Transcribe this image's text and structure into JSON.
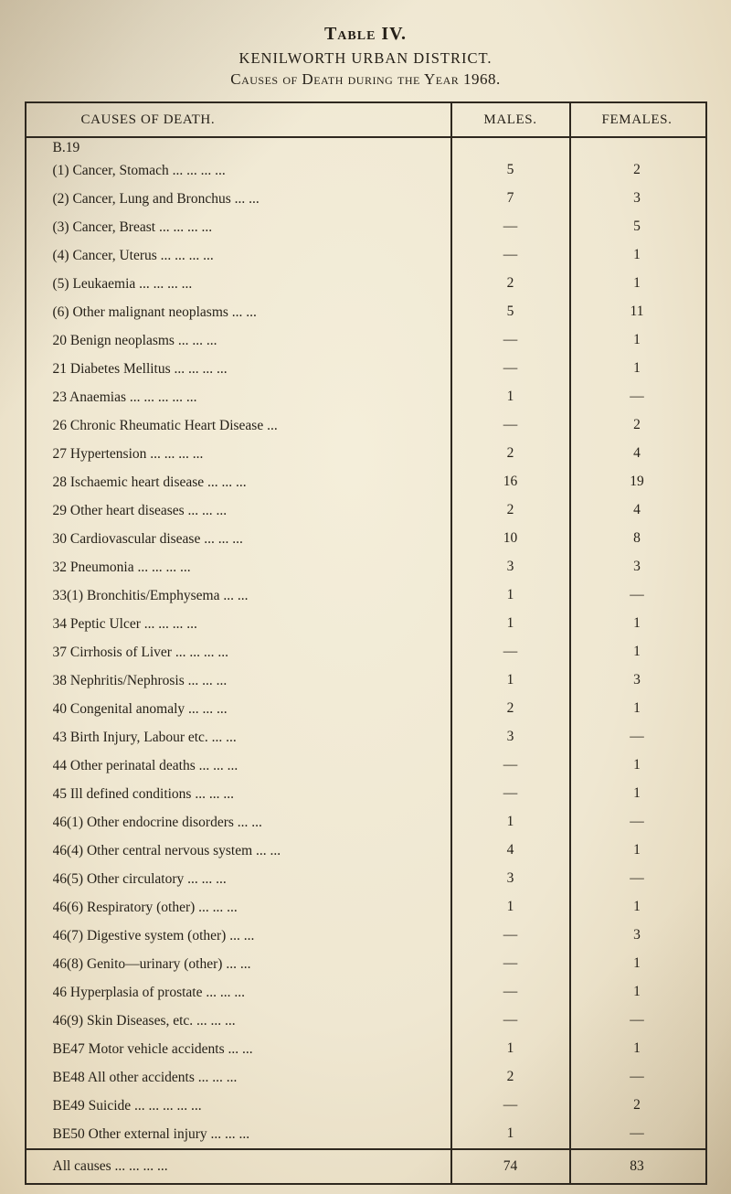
{
  "heading": {
    "title": "Table IV.",
    "district": "KENILWORTH URBAN DISTRICT.",
    "caption": "Causes of Death during the Year 1968."
  },
  "table": {
    "headers": [
      "CAUSES OF DEATH.",
      "MALES.",
      "FEMALES."
    ],
    "rows": [
      {
        "group": "B.19",
        "label": "(1) Cancer, Stomach ... ... ... ...",
        "males": "5",
        "females": "2"
      },
      {
        "label": "(2) Cancer, Lung and Bronchus ... ...",
        "males": "7",
        "females": "3"
      },
      {
        "label": "(3) Cancer, Breast ... ... ... ...",
        "males": "—",
        "females": "5"
      },
      {
        "label": "(4) Cancer, Uterus ... ... ... ...",
        "males": "—",
        "females": "1"
      },
      {
        "label": "(5) Leukaemia ... ... ... ...",
        "males": "2",
        "females": "1"
      },
      {
        "label": "(6) Other malignant neoplasms ... ...",
        "males": "5",
        "females": "11"
      },
      {
        "label": "20 Benign neoplasms ... ... ...",
        "males": "—",
        "females": "1"
      },
      {
        "label": "21 Diabetes Mellitus ... ... ... ...",
        "males": "—",
        "females": "1"
      },
      {
        "label": "23 Anaemias ... ... ... ... ...",
        "males": "1",
        "females": "—"
      },
      {
        "label": "26 Chronic Rheumatic Heart Disease ...",
        "males": "—",
        "females": "2"
      },
      {
        "label": "27 Hypertension ... ... ... ...",
        "males": "2",
        "females": "4"
      },
      {
        "label": "28 Ischaemic heart disease ... ... ...",
        "males": "16",
        "females": "19"
      },
      {
        "label": "29 Other heart diseases ... ... ...",
        "males": "2",
        "females": "4"
      },
      {
        "label": "30 Cardiovascular disease ... ... ...",
        "males": "10",
        "females": "8"
      },
      {
        "label": "32 Pneumonia ... ... ... ...",
        "males": "3",
        "females": "3"
      },
      {
        "label": "33(1) Bronchitis/Emphysema ... ...",
        "males": "1",
        "females": "—"
      },
      {
        "label": "34 Peptic Ulcer ... ... ... ...",
        "males": "1",
        "females": "1"
      },
      {
        "label": "37 Cirrhosis of Liver ... ... ... ...",
        "males": "—",
        "females": "1"
      },
      {
        "label": "38 Nephritis/Nephrosis ... ... ...",
        "males": "1",
        "females": "3"
      },
      {
        "label": "40 Congenital anomaly ... ... ...",
        "males": "2",
        "females": "1"
      },
      {
        "label": "43 Birth Injury, Labour etc. ... ...",
        "males": "3",
        "females": "—"
      },
      {
        "label": "44 Other perinatal deaths ... ... ...",
        "males": "—",
        "females": "1"
      },
      {
        "label": "45 Ill defined conditions ... ... ...",
        "males": "—",
        "females": "1"
      },
      {
        "label": "46(1) Other endocrine disorders ... ...",
        "males": "1",
        "females": "—"
      },
      {
        "label": "46(4) Other central nervous system ... ...",
        "males": "4",
        "females": "1"
      },
      {
        "label": "46(5) Other circulatory ... ... ...",
        "males": "3",
        "females": "—"
      },
      {
        "label": "46(6) Respiratory (other) ... ... ...",
        "males": "1",
        "females": "1"
      },
      {
        "label": "46(7) Digestive system (other) ... ...",
        "males": "—",
        "females": "3"
      },
      {
        "label": "46(8) Genito—urinary (other) ... ...",
        "males": "—",
        "females": "1"
      },
      {
        "label": "46 Hyperplasia of prostate ... ... ...",
        "males": "—",
        "females": "1"
      },
      {
        "label": "46(9) Skin Diseases, etc. ... ... ...",
        "males": "—",
        "females": "—"
      },
      {
        "label": "BE47 Motor vehicle accidents ... ...",
        "males": "1",
        "females": "1"
      },
      {
        "label": "BE48 All other accidents ... ... ...",
        "males": "2",
        "females": "—"
      },
      {
        "label": "BE49 Suicide ... ... ... ... ...",
        "males": "—",
        "females": "2"
      },
      {
        "label": "BE50 Other external injury ... ... ...",
        "males": "1",
        "females": "—"
      }
    ],
    "footer": {
      "label": "All causes ... ... ... ...",
      "males": "74",
      "females": "83"
    }
  }
}
